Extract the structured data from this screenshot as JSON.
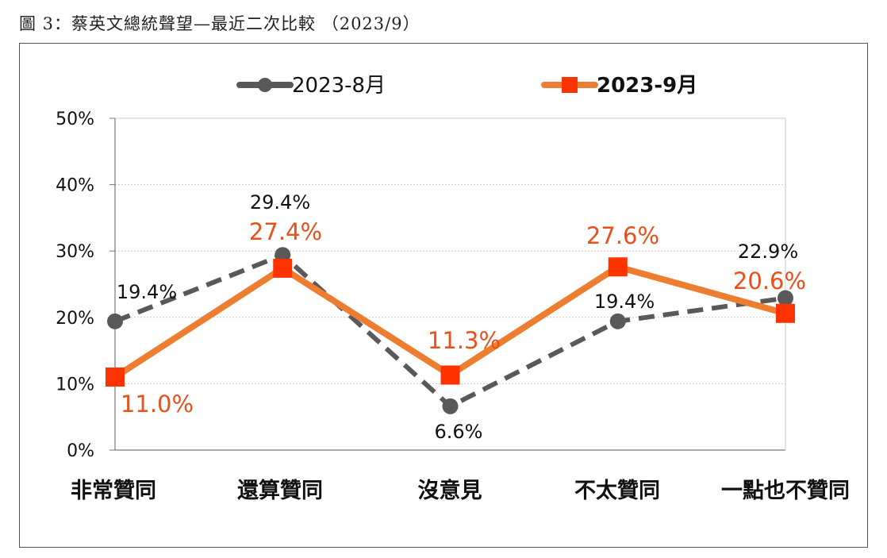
{
  "figure_title": "圖 3：蔡英文總統聲望—最近二次比較 （2023/9）",
  "colors": {
    "aug": "#595959",
    "sep": "#ed7d31",
    "sep_marker": "#ff3300",
    "sep_label": "#e8501a"
  },
  "chart_data": {
    "type": "line",
    "title": "圖 3：蔡英文總統聲望—最近二次比較 （2023/9）",
    "categories": [
      "非常贊同",
      "還算贊同",
      "沒意見",
      "不太贊同",
      "一點也不贊同"
    ],
    "yticks": [
      "0%",
      "10%",
      "20%",
      "30%",
      "40%",
      "50%"
    ],
    "ylim": [
      0,
      50
    ],
    "grid": true,
    "legend_position": "top",
    "series": [
      {
        "name": "2023-8月",
        "values": [
          19.4,
          29.4,
          6.6,
          19.4,
          22.9
        ],
        "labels": [
          "19.4%",
          "29.4%",
          "6.6%",
          "19.4%",
          "22.9%"
        ]
      },
      {
        "name": "2023-9月",
        "values": [
          11.0,
          27.4,
          11.3,
          27.6,
          20.6
        ],
        "labels": [
          "11.0%",
          "27.4%",
          "11.3%",
          "27.6%",
          "20.6%"
        ]
      }
    ]
  }
}
